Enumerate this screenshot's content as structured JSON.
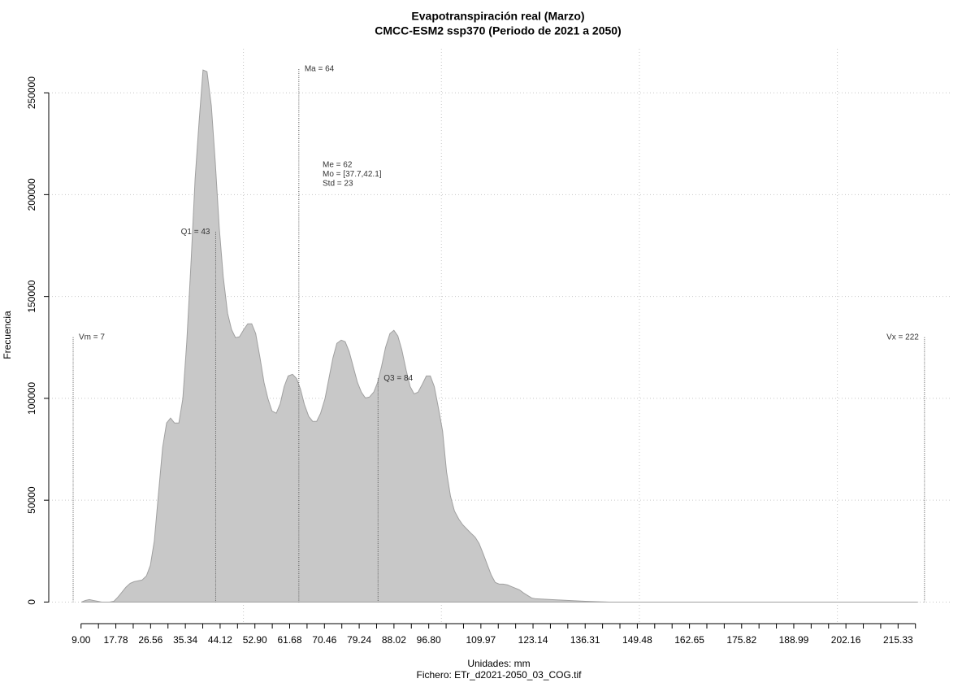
{
  "chart_data": {
    "type": "area",
    "title": "Evapotranspiración real (Marzo)",
    "subtitle": "CMCC-ESM2 ssp370 (Periodo de 2021 a 2050)",
    "x_label": "Unidades: mm",
    "caption": "Fichero: ETr_d2021-2050_03_COG.tif",
    "y_label": "Frecuencia",
    "color": "#c8c8c8",
    "line_color": "#a0a0a0",
    "grid": true,
    "xlim": [
      0.84,
      228.6
    ],
    "ylim": [
      -11000,
      271600
    ],
    "yticks": [
      0,
      50000,
      100000,
      150000,
      200000,
      250000
    ],
    "xgrid": [
      50,
      100,
      150,
      200
    ],
    "xticks": [
      {
        "value": 9,
        "label": "9.00"
      },
      {
        "value": 17.78,
        "label": "17.78"
      },
      {
        "value": 26.56,
        "label": "26.56"
      },
      {
        "value": 35.34,
        "label": "35.34"
      },
      {
        "value": 44.12,
        "label": "44.12"
      },
      {
        "value": 52.9,
        "label": "52.90"
      },
      {
        "value": 61.68,
        "label": "61.68"
      },
      {
        "value": 70.46,
        "label": "70.46"
      },
      {
        "value": 79.24,
        "label": "79.24"
      },
      {
        "value": 88.02,
        "label": "88.02"
      },
      {
        "value": 96.8,
        "label": "96.80"
      },
      {
        "value": 109.97,
        "label": "109.97"
      },
      {
        "value": 123.14,
        "label": "123.14"
      },
      {
        "value": 136.31,
        "label": "136.31"
      },
      {
        "value": 149.48,
        "label": "149.48"
      },
      {
        "value": 162.65,
        "label": "162.65"
      },
      {
        "value": 175.82,
        "label": "175.82"
      },
      {
        "value": 188.99,
        "label": "188.99"
      },
      {
        "value": 202.16,
        "label": "202.16"
      },
      {
        "value": 215.33,
        "label": "215.33"
      }
    ],
    "xticks_minor": [
      13.39,
      22.17,
      30.95,
      39.73,
      48.51,
      57.29,
      66.07,
      74.85,
      83.63,
      92.41,
      101.19,
      105.58,
      114.36,
      118.75,
      127.53,
      131.92,
      140.7,
      145.09,
      153.87,
      158.26,
      167.04,
      171.43,
      180.21,
      184.6,
      193.38,
      197.77,
      206.55,
      210.94,
      219.72
    ],
    "x": [
      9.1,
      10.1,
      11.1,
      12.1,
      13.2,
      14.2,
      15.2,
      16.2,
      17.3,
      18.3,
      19.3,
      20.3,
      21.4,
      22.4,
      23.4,
      24.4,
      25.5,
      26.5,
      27.5,
      28.5,
      29.6,
      30.6,
      31.6,
      32.6,
      33.7,
      34.7,
      35.7,
      36.8,
      37.8,
      38.8,
      39.8,
      40.8,
      41.9,
      42.9,
      43.9,
      44.9,
      46.0,
      47.0,
      48.0,
      49.0,
      50.1,
      51.1,
      52.1,
      53.1,
      54.2,
      55.2,
      56.2,
      57.2,
      58.3,
      59.3,
      60.3,
      61.3,
      62.4,
      63.4,
      64.4,
      65.4,
      66.5,
      67.5,
      68.5,
      69.5,
      70.6,
      71.6,
      72.6,
      73.6,
      74.7,
      75.7,
      76.7,
      77.7,
      78.8,
      79.8,
      80.8,
      81.8,
      82.9,
      83.9,
      84.9,
      85.9,
      87.0,
      88.0,
      89.0,
      90.0,
      91.1,
      92.1,
      93.1,
      94.1,
      95.2,
      96.2,
      97.2,
      98.2,
      99.2,
      100.3,
      101.3,
      102.3,
      103.3,
      104.4,
      105.4,
      106.4,
      107.4,
      108.5,
      109.5,
      110.5,
      111.5,
      112.6,
      113.6,
      114.6,
      115.6,
      116.7,
      117.7,
      118.7,
      119.7,
      120.8,
      121.8,
      122.8,
      123.8,
      128.1,
      132.2,
      136.3,
      142.4,
      220.2
    ],
    "values": [
      0,
      800,
      1200,
      800,
      400,
      0,
      0,
      0,
      400,
      2400,
      4800,
      7200,
      9200,
      10000,
      10400,
      10800,
      12800,
      18000,
      30000,
      52000,
      75900,
      87900,
      90300,
      87900,
      87900,
      99800,
      127800,
      167700,
      207700,
      235600,
      261200,
      260400,
      243600,
      215700,
      183700,
      159700,
      141800,
      133800,
      129800,
      130200,
      133800,
      136600,
      136600,
      131800,
      119800,
      107800,
      99800,
      93800,
      92700,
      97400,
      105800,
      111000,
      111800,
      109800,
      104600,
      97000,
      91100,
      88700,
      88700,
      92700,
      99800,
      109800,
      119800,
      127000,
      128600,
      127800,
      123000,
      115800,
      107800,
      103000,
      100200,
      100600,
      103000,
      107800,
      115800,
      125000,
      131800,
      133400,
      130600,
      123800,
      113800,
      105800,
      102200,
      103000,
      107000,
      111000,
      111000,
      105800,
      95800,
      83900,
      63900,
      51900,
      44700,
      40700,
      37900,
      35900,
      33900,
      31900,
      28800,
      24000,
      18800,
      13200,
      9600,
      8800,
      8800,
      8400,
      7600,
      6800,
      6000,
      4400,
      3200,
      2000,
      1600,
      1200,
      800,
      400,
      0,
      0
    ],
    "annotations": [
      {
        "label": "Vm = 7",
        "x": 7,
        "y": 130000,
        "side": "right"
      },
      {
        "label": "Q1 = 43",
        "x": 43,
        "y": 181700,
        "side": "left"
      },
      {
        "label": "Ma = 64",
        "x": 64,
        "y": 261600,
        "side": "right"
      },
      {
        "label": "Q3 = 84",
        "x": 84,
        "y": 109800,
        "side": "right"
      },
      {
        "label": "Vx = 222",
        "x": 222,
        "y": 130000,
        "side": "left"
      }
    ],
    "stats": [
      "Me = 62",
      "Mo = [37.7,42.1]",
      "Std = 23"
    ]
  }
}
